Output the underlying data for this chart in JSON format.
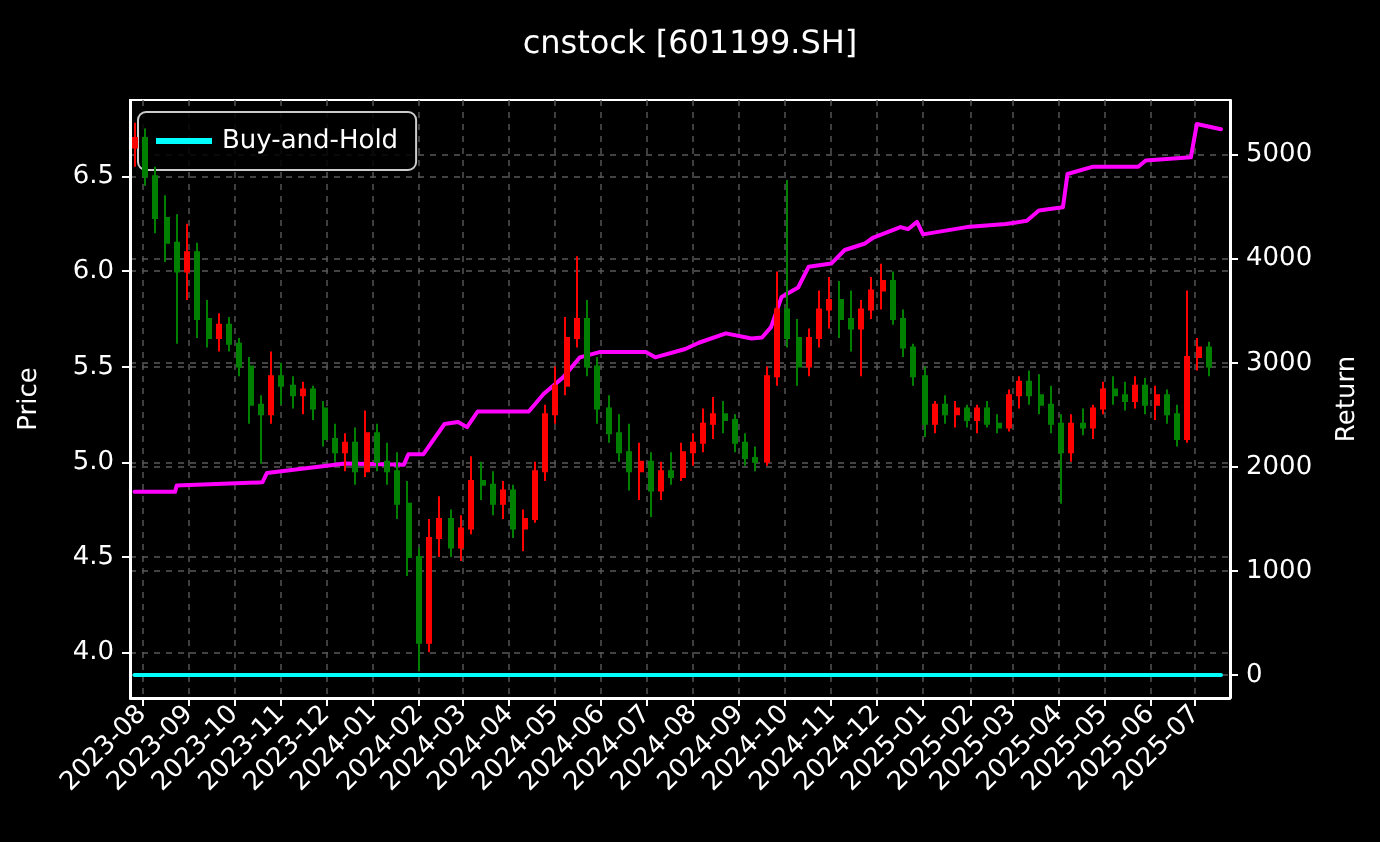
{
  "chart_data": {
    "type": "candlestick",
    "title": "cnstock [601199.SH]",
    "ylabel": "Price",
    "y2label": "Return",
    "x": [
      "2023-07-27",
      "2023-08-03",
      "2023-08-10",
      "2023-08-17",
      "2023-08-24",
      "2023-08-31",
      "2023-09-07",
      "2023-09-14",
      "2023-09-21",
      "2023-09-28",
      "2023-10-05",
      "2023-10-12",
      "2023-10-19",
      "2023-10-26",
      "2023-11-02",
      "2023-11-09",
      "2023-11-16",
      "2023-11-23",
      "2023-11-30",
      "2023-12-07",
      "2023-12-14",
      "2023-12-21",
      "2023-12-28",
      "2024-01-04",
      "2024-01-11",
      "2024-01-18",
      "2024-01-25",
      "2024-02-01",
      "2024-02-08",
      "2024-02-15",
      "2024-02-22",
      "2024-02-29",
      "2024-03-07",
      "2024-03-14",
      "2024-03-21",
      "2024-03-28",
      "2024-04-04",
      "2024-04-11",
      "2024-04-18",
      "2024-04-25",
      "2024-05-02",
      "2024-05-09",
      "2024-05-16",
      "2024-05-23",
      "2024-05-30",
      "2024-06-06",
      "2024-06-13",
      "2024-06-20",
      "2024-06-27",
      "2024-07-04",
      "2024-07-11",
      "2024-07-18",
      "2024-07-25",
      "2024-08-01",
      "2024-08-08",
      "2024-08-15",
      "2024-08-22",
      "2024-08-29",
      "2024-09-05",
      "2024-09-12",
      "2024-09-19",
      "2024-09-26",
      "2024-10-03",
      "2024-10-10",
      "2024-10-17",
      "2024-10-24",
      "2024-10-31",
      "2024-11-07",
      "2024-11-14",
      "2024-11-21",
      "2024-11-28",
      "2024-12-05",
      "2024-12-12",
      "2024-12-19",
      "2024-12-26",
      "2025-01-02",
      "2025-01-09",
      "2025-01-16",
      "2025-01-23",
      "2025-01-30",
      "2025-02-06",
      "2025-02-13",
      "2025-02-20",
      "2025-02-27",
      "2025-03-06",
      "2025-03-13",
      "2025-03-20",
      "2025-03-27",
      "2025-04-03",
      "2025-04-10",
      "2025-04-17",
      "2025-04-24",
      "2025-05-01",
      "2025-05-08",
      "2025-05-15",
      "2025-05-22",
      "2025-05-29",
      "2025-06-05",
      "2025-06-12",
      "2025-06-19",
      "2025-06-26",
      "2025-07-03",
      "2025-07-10"
    ],
    "ohlc": [
      [
        6.65,
        6.78,
        6.55,
        6.7
      ],
      [
        6.7,
        6.75,
        6.45,
        6.5
      ],
      [
        6.5,
        6.55,
        6.2,
        6.28
      ],
      [
        6.28,
        6.4,
        6.05,
        6.15
      ],
      [
        6.15,
        6.3,
        5.62,
        6.0
      ],
      [
        6.0,
        6.25,
        5.85,
        6.1
      ],
      [
        6.1,
        6.15,
        5.65,
        5.75
      ],
      [
        5.75,
        5.85,
        5.6,
        5.65
      ],
      [
        5.65,
        5.78,
        5.58,
        5.72
      ],
      [
        5.72,
        5.76,
        5.58,
        5.62
      ],
      [
        5.62,
        5.65,
        5.45,
        5.5
      ],
      [
        5.5,
        5.55,
        5.2,
        5.3
      ],
      [
        5.3,
        5.35,
        4.99,
        5.25
      ],
      [
        5.25,
        5.58,
        5.2,
        5.45
      ],
      [
        5.45,
        5.52,
        5.3,
        5.4
      ],
      [
        5.4,
        5.45,
        5.28,
        5.35
      ],
      [
        5.35,
        5.42,
        5.25,
        5.38
      ],
      [
        5.38,
        5.4,
        5.22,
        5.28
      ],
      [
        5.28,
        5.32,
        5.08,
        5.12
      ],
      [
        5.12,
        5.2,
        5.0,
        5.05
      ],
      [
        5.05,
        5.15,
        4.95,
        5.1
      ],
      [
        5.1,
        5.18,
        4.88,
        4.95
      ],
      [
        4.95,
        5.27,
        4.92,
        5.15
      ],
      [
        5.15,
        5.2,
        4.95,
        5.0
      ],
      [
        5.0,
        5.1,
        4.88,
        4.95
      ],
      [
        4.95,
        5.05,
        4.7,
        4.78
      ],
      [
        4.78,
        4.9,
        4.4,
        4.5
      ],
      [
        4.5,
        4.55,
        3.9,
        4.05
      ],
      [
        4.05,
        4.7,
        4.0,
        4.6
      ],
      [
        4.6,
        4.82,
        4.5,
        4.7
      ],
      [
        4.7,
        4.75,
        4.5,
        4.55
      ],
      [
        4.55,
        4.72,
        4.48,
        4.65
      ],
      [
        4.65,
        5.03,
        4.62,
        4.9
      ],
      [
        4.9,
        5.0,
        4.8,
        4.88
      ],
      [
        4.88,
        4.95,
        4.72,
        4.78
      ],
      [
        4.78,
        4.9,
        4.7,
        4.85
      ],
      [
        4.85,
        4.88,
        4.6,
        4.65
      ],
      [
        4.65,
        4.75,
        4.53,
        4.7
      ],
      [
        4.7,
        5.0,
        4.68,
        4.95
      ],
      [
        4.95,
        5.3,
        4.9,
        5.25
      ],
      [
        5.25,
        5.5,
        5.2,
        5.4
      ],
      [
        5.4,
        5.76,
        5.35,
        5.65
      ],
      [
        5.65,
        6.08,
        5.6,
        5.75
      ],
      [
        5.75,
        5.85,
        5.45,
        5.5
      ],
      [
        5.5,
        5.55,
        5.2,
        5.28
      ],
      [
        5.28,
        5.35,
        5.1,
        5.15
      ],
      [
        5.15,
        5.25,
        5.0,
        5.05
      ],
      [
        5.05,
        5.2,
        4.85,
        4.95
      ],
      [
        4.95,
        5.1,
        4.8,
        5.0
      ],
      [
        5.0,
        5.05,
        4.71,
        4.85
      ],
      [
        4.85,
        5.0,
        4.8,
        4.95
      ],
      [
        4.95,
        5.05,
        4.88,
        4.92
      ],
      [
        4.92,
        5.1,
        4.9,
        5.05
      ],
      [
        5.05,
        5.15,
        4.98,
        5.1
      ],
      [
        5.1,
        5.28,
        5.05,
        5.2
      ],
      [
        5.2,
        5.34,
        5.12,
        5.25
      ],
      [
        5.25,
        5.32,
        5.15,
        5.22
      ],
      [
        5.22,
        5.25,
        5.05,
        5.1
      ],
      [
        5.1,
        5.15,
        4.98,
        5.02
      ],
      [
        5.02,
        5.08,
        4.95,
        5.0
      ],
      [
        5.0,
        5.5,
        4.98,
        5.45
      ],
      [
        5.45,
        6.0,
        5.4,
        5.8
      ],
      [
        5.8,
        6.48,
        5.6,
        5.65
      ],
      [
        5.65,
        5.75,
        5.4,
        5.5
      ],
      [
        5.5,
        5.7,
        5.45,
        5.65
      ],
      [
        5.65,
        5.9,
        5.6,
        5.8
      ],
      [
        5.8,
        5.97,
        5.7,
        5.85
      ],
      [
        5.85,
        5.95,
        5.65,
        5.75
      ],
      [
        5.75,
        5.9,
        5.58,
        5.7
      ],
      [
        5.7,
        5.85,
        5.45,
        5.8
      ],
      [
        5.8,
        5.97,
        5.75,
        5.9
      ],
      [
        5.9,
        6.04,
        5.8,
        5.95
      ],
      [
        5.95,
        6.0,
        5.72,
        5.75
      ],
      [
        5.75,
        5.8,
        5.55,
        5.6
      ],
      [
        5.6,
        5.62,
        5.4,
        5.45
      ],
      [
        5.45,
        5.5,
        5.13,
        5.2
      ],
      [
        5.2,
        5.32,
        5.15,
        5.3
      ],
      [
        5.3,
        5.35,
        5.2,
        5.25
      ],
      [
        5.25,
        5.32,
        5.18,
        5.28
      ],
      [
        5.28,
        5.3,
        5.18,
        5.22
      ],
      [
        5.22,
        5.3,
        5.15,
        5.28
      ],
      [
        5.28,
        5.32,
        5.18,
        5.2
      ],
      [
        5.2,
        5.25,
        5.15,
        5.18
      ],
      [
        5.18,
        5.38,
        5.16,
        5.35
      ],
      [
        5.35,
        5.45,
        5.28,
        5.42
      ],
      [
        5.42,
        5.48,
        5.3,
        5.35
      ],
      [
        5.35,
        5.46,
        5.25,
        5.3
      ],
      [
        5.3,
        5.4,
        5.15,
        5.2
      ],
      [
        5.2,
        5.25,
        4.78,
        5.05
      ],
      [
        5.05,
        5.25,
        5.0,
        5.2
      ],
      [
        5.2,
        5.28,
        5.14,
        5.18
      ],
      [
        5.18,
        5.3,
        5.12,
        5.28
      ],
      [
        5.28,
        5.42,
        5.25,
        5.38
      ],
      [
        5.38,
        5.45,
        5.3,
        5.35
      ],
      [
        5.35,
        5.42,
        5.27,
        5.32
      ],
      [
        5.32,
        5.45,
        5.28,
        5.4
      ],
      [
        5.4,
        5.44,
        5.25,
        5.3
      ],
      [
        5.3,
        5.4,
        5.22,
        5.35
      ],
      [
        5.35,
        5.38,
        5.2,
        5.25
      ],
      [
        5.25,
        5.3,
        5.08,
        5.12
      ],
      [
        5.12,
        5.9,
        5.1,
        5.55
      ],
      [
        5.55,
        5.65,
        5.48,
        5.6
      ],
      [
        5.6,
        5.63,
        5.45,
        5.5
      ]
    ],
    "colors": [
      "#ff0000",
      "#008000",
      "#008000",
      "#008000",
      "#008000",
      "#ff0000",
      "#008000",
      "#008000",
      "#ff0000",
      "#008000",
      "#008000",
      "#008000",
      "#008000",
      "#ff0000",
      "#008000",
      "#008000",
      "#ff0000",
      "#008000",
      "#008000",
      "#008000",
      "#ff0000",
      "#008000",
      "#ff0000",
      "#008000",
      "#008000",
      "#008000",
      "#008000",
      "#008000",
      "#ff0000",
      "#ff0000",
      "#008000",
      "#ff0000",
      "#ff0000",
      "#008000",
      "#008000",
      "#ff0000",
      "#008000",
      "#ff0000",
      "#ff0000",
      "#ff0000",
      "#ff0000",
      "#ff0000",
      "#ff0000",
      "#008000",
      "#008000",
      "#008000",
      "#008000",
      "#008000",
      "#ff0000",
      "#008000",
      "#ff0000",
      "#008000",
      "#ff0000",
      "#ff0000",
      "#ff0000",
      "#ff0000",
      "#008000",
      "#008000",
      "#008000",
      "#008000",
      "#ff0000",
      "#ff0000",
      "#008000",
      "#008000",
      "#ff0000",
      "#ff0000",
      "#ff0000",
      "#008000",
      "#008000",
      "#ff0000",
      "#ff0000",
      "#ff0000",
      "#008000",
      "#008000",
      "#008000",
      "#008000",
      "#ff0000",
      "#008000",
      "#ff0000",
      "#008000",
      "#ff0000",
      "#008000",
      "#008000",
      "#ff0000",
      "#ff0000",
      "#008000",
      "#008000",
      "#008000",
      "#008000",
      "#ff0000",
      "#008000",
      "#ff0000",
      "#ff0000",
      "#008000",
      "#008000",
      "#ff0000",
      "#008000",
      "#ff0000",
      "#008000",
      "#008000",
      "#ff0000",
      "#ff0000",
      "#008000"
    ],
    "series": [
      {
        "type": "line",
        "axis": "y2",
        "color": "#ff00ff",
        "x": [
          "2023-07-27",
          "2023-08-23",
          "2023-08-24",
          "2023-10-20",
          "2023-10-23",
          "2023-12-14",
          "2024-01-22",
          "2024-01-25",
          "2024-02-04",
          "2024-02-18",
          "2024-02-27",
          "2024-03-04",
          "2024-03-11",
          "2024-04-14",
          "2024-04-24",
          "2024-05-07",
          "2024-05-18",
          "2024-05-31",
          "2024-07-01",
          "2024-07-07",
          "2024-07-27",
          "2024-08-05",
          "2024-08-23",
          "2024-09-09",
          "2024-09-16",
          "2024-09-22",
          "2024-09-29",
          "2024-10-10",
          "2024-10-17",
          "2024-11-01",
          "2024-11-10",
          "2024-11-23",
          "2024-11-29",
          "2024-12-17",
          "2024-12-22",
          "2024-12-28",
          "2025-01-01",
          "2025-01-30",
          "2025-02-25",
          "2025-03-11",
          "2025-03-19",
          "2025-04-04",
          "2025-04-07",
          "2025-04-24",
          "2025-05-24",
          "2025-05-29",
          "2025-06-28",
          "2025-07-02",
          "2025-07-18"
        ],
        "values": [
          1760,
          1760,
          1820,
          1850,
          1940,
          2030,
          2020,
          2120,
          2120,
          2410,
          2430,
          2380,
          2530,
          2530,
          2700,
          2860,
          3050,
          3100,
          3100,
          3050,
          3130,
          3190,
          3280,
          3230,
          3240,
          3340,
          3630,
          3720,
          3920,
          3950,
          4080,
          4140,
          4200,
          4300,
          4280,
          4350,
          4230,
          4300,
          4330,
          4360,
          4460,
          4490,
          4810,
          4880,
          4880,
          4940,
          4970,
          5290,
          5240
        ]
      },
      {
        "type": "line",
        "axis": "y2",
        "name": "Buy-and-Hold",
        "color": "#00ffff",
        "x": [
          "2023-07-27",
          "2025-07-18"
        ],
        "values": [
          0,
          0
        ]
      }
    ],
    "xlim": [
      "2023-07-24",
      "2025-07-24"
    ],
    "xticks": [
      "2023-08",
      "2023-09",
      "2023-10",
      "2023-11",
      "2023-12",
      "2024-01",
      "2024-02",
      "2024-03",
      "2024-04",
      "2024-05",
      "2024-06",
      "2024-07",
      "2024-08",
      "2024-09",
      "2024-10",
      "2024-11",
      "2024-12",
      "2025-01",
      "2025-02",
      "2025-03",
      "2025-04",
      "2025-05",
      "2025-06",
      "2025-07"
    ],
    "ylim": [
      3.76,
      6.9
    ],
    "yticks": [
      {
        "value": 4,
        "label": "4.0"
      },
      4.5,
      {
        "value": 5,
        "label": "5.0"
      },
      5.5,
      {
        "value": 6,
        "label": "6.0"
      },
      6.5
    ],
    "y2lim": [
      -220,
      5520
    ],
    "y2ticks": [
      0,
      1000,
      2000,
      3000,
      4000,
      5000
    ],
    "grid": true,
    "legend": "top left"
  }
}
